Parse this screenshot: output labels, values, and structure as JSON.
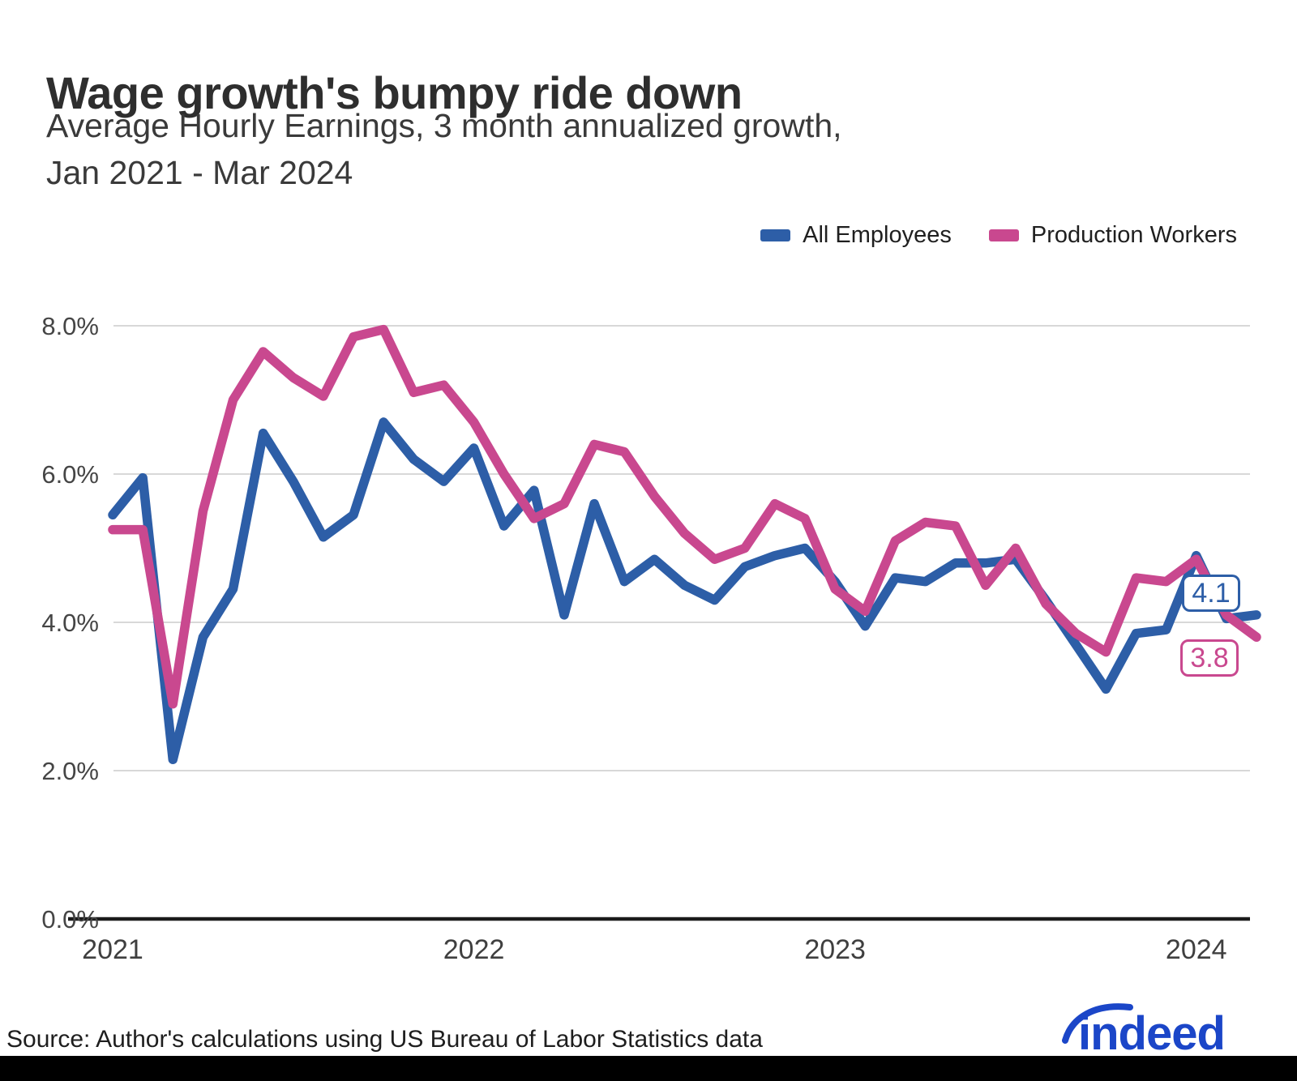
{
  "chart_data": {
    "type": "line",
    "title": "Wage growth's bumpy ride down",
    "subtitle_lines": [
      "Average Hourly Earnings, 3 month annualized growth,",
      "Jan 2021 - Mar 2024"
    ],
    "x": [
      "2021-01",
      "2021-02",
      "2021-03",
      "2021-04",
      "2021-05",
      "2021-06",
      "2021-07",
      "2021-08",
      "2021-09",
      "2021-10",
      "2021-11",
      "2021-12",
      "2022-01",
      "2022-02",
      "2022-03",
      "2022-04",
      "2022-05",
      "2022-06",
      "2022-07",
      "2022-08",
      "2022-09",
      "2022-10",
      "2022-11",
      "2022-12",
      "2023-01",
      "2023-02",
      "2023-03",
      "2023-04",
      "2023-05",
      "2023-06",
      "2023-07",
      "2023-08",
      "2023-09",
      "2023-10",
      "2023-11",
      "2023-12",
      "2024-01",
      "2024-02",
      "2024-03"
    ],
    "x_tick_labels": [
      "2021",
      "2022",
      "2023",
      "2024"
    ],
    "x_tick_month_indices": [
      0,
      12,
      24,
      36
    ],
    "y_tick_labels": [
      "0.0%",
      "2.0%",
      "4.0%",
      "6.0%",
      "8.0%"
    ],
    "y_tick_values": [
      0,
      2,
      4,
      6,
      8
    ],
    "ylim": [
      0,
      8
    ],
    "grid": "horizontal",
    "legend_position": "top-right",
    "series": [
      {
        "name": "All Employees",
        "color": "#2d5ea7",
        "values": [
          5.45,
          5.95,
          2.15,
          3.8,
          4.45,
          6.55,
          5.9,
          5.15,
          5.45,
          6.7,
          6.2,
          5.9,
          6.35,
          5.3,
          5.78,
          4.1,
          5.6,
          4.55,
          4.85,
          4.5,
          4.3,
          4.75,
          4.9,
          5.0,
          4.55,
          3.95,
          4.6,
          4.55,
          4.8,
          4.8,
          4.85,
          4.3,
          3.7,
          3.1,
          3.85,
          3.9,
          4.9,
          4.05,
          4.1
        ]
      },
      {
        "name": "Production Workers",
        "color": "#c9488f",
        "values": [
          5.25,
          5.25,
          2.9,
          5.5,
          7.0,
          7.65,
          7.3,
          7.05,
          7.85,
          7.95,
          7.1,
          7.2,
          6.7,
          6.0,
          5.4,
          5.6,
          6.4,
          6.3,
          5.7,
          5.2,
          4.85,
          5.0,
          5.6,
          5.4,
          4.45,
          4.15,
          5.1,
          5.35,
          5.3,
          4.5,
          5.0,
          4.25,
          3.85,
          3.6,
          4.6,
          4.55,
          4.85,
          4.1,
          3.8
        ]
      }
    ],
    "end_labels": [
      {
        "series": "All Employees",
        "text": "4.1",
        "color": "#2d5ea7"
      },
      {
        "series": "Production Workers",
        "text": "3.8",
        "color": "#c9488f"
      }
    ],
    "axis_colors": {
      "gridline": "#d8d8d8",
      "baseline": "#1b1b1b",
      "tick_text": "#454545"
    }
  },
  "footer": {
    "source": "Source: Author's calculations using US Bureau of Labor Statistics data",
    "logo_text": "indeed",
    "logo_color": "#1b46c8"
  }
}
